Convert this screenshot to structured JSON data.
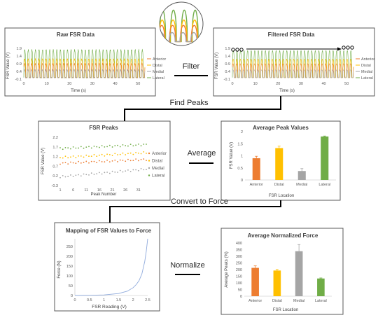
{
  "colors": {
    "anterior": "#ED7D31",
    "distal": "#FFC000",
    "medial": "#A5A5A5",
    "lateral": "#70AD47",
    "curve": "#8FAADC",
    "frame": "#595959",
    "text": "#404040"
  },
  "legend": [
    "Anterior",
    "Distal",
    "Medial",
    "Lateral"
  ],
  "arrows": {
    "filter": "Filter",
    "find_peaks": "Find Peaks",
    "average": "Average",
    "convert": "Convert to Force",
    "normalize": "Normalize"
  },
  "panels": {
    "raw": {
      "title": "Raw FSR Data",
      "ylabel": "FSR Value (V)",
      "xlabel": "Time (s)",
      "yticks": [
        "1.9",
        "1.4",
        "0.9",
        "0.4",
        "-0.1"
      ],
      "xticks": [
        "0",
        "10",
        "20",
        "30",
        "40",
        "50"
      ]
    },
    "filtered": {
      "title": "Filtered FSR Data",
      "ylabel": "FSR Value (V)",
      "xlabel": "Time (s)",
      "yticks": [
        "1.9",
        "1.4",
        "0.9",
        "0.4",
        "-0.1"
      ],
      "xticks": [
        "0",
        "10",
        "20",
        "30",
        "40",
        "50"
      ]
    },
    "peaks": {
      "title": "FSR Peaks",
      "ylabel": "FSR Value (V)",
      "xlabel": "Peak Number",
      "yticks": [
        "2.2",
        "1.7",
        "1.2",
        "0.7",
        "0.2",
        "-0.3"
      ],
      "xticks": [
        "1",
        "6",
        "11",
        "16",
        "21",
        "26",
        "31"
      ]
    },
    "avg_peak": {
      "title": "Average Peak Values",
      "ylabel": "FSR Value (V)",
      "xlabel": "FSR Location",
      "yticks": [
        "2",
        "1.5",
        "1",
        "0.5",
        "0"
      ],
      "categories": [
        "Anterior",
        "Distal",
        "Medial",
        "Lateral"
      ]
    },
    "mapping": {
      "title": "Mapping of FSR Values to Force",
      "ylabel": "Force (N)",
      "xlabel": "FSR Reading (V)",
      "yticks": [
        "250",
        "200",
        "150",
        "100",
        "50",
        "0"
      ],
      "xticks": [
        "0",
        "0.5",
        "1",
        "1.5",
        "2",
        "2.5"
      ]
    },
    "norm": {
      "title": "Average Normalized Force",
      "ylabel": "Average Peaks (%)",
      "xlabel": "FSR Location",
      "yticks": [
        "400",
        "350",
        "300",
        "250",
        "200",
        "150",
        "100",
        "50",
        "0"
      ],
      "categories": [
        "Anterior",
        "Distal",
        "Medial",
        "Lateral"
      ]
    }
  },
  "chart_data": [
    {
      "type": "line",
      "title": "Raw FSR Data",
      "xlabel": "Time (s)",
      "ylabel": "FSR Value (V)",
      "xlim": [
        0,
        53
      ],
      "ylim": [
        -0.1,
        1.9
      ],
      "cycles": 34,
      "series": [
        {
          "name": "Anterior",
          "low": 0.0,
          "high": 0.9
        },
        {
          "name": "Distal",
          "low": 0.0,
          "high": 1.2
        },
        {
          "name": "Medial",
          "low": 0.0,
          "high": 0.5
        },
        {
          "name": "Lateral",
          "low": 0.0,
          "high": 1.8
        }
      ]
    },
    {
      "type": "line",
      "title": "Filtered FSR Data",
      "xlabel": "Time (s)",
      "ylabel": "FSR Value (V)",
      "xlim": [
        0,
        53
      ],
      "ylim": [
        -0.1,
        1.9
      ],
      "cycles": 34,
      "series": [
        {
          "name": "Anterior",
          "low": 0.0,
          "high": 0.9
        },
        {
          "name": "Distal",
          "low": 0.0,
          "high": 1.2
        },
        {
          "name": "Medial",
          "low": 0.0,
          "high": 0.5
        },
        {
          "name": "Lateral",
          "low": 0.0,
          "high": 1.75
        }
      ]
    },
    {
      "type": "scatter",
      "title": "FSR Peaks",
      "xlabel": "Peak Number",
      "ylabel": "FSR Value (V)",
      "xlim": [
        1,
        34
      ],
      "ylim": [
        -0.3,
        2.2
      ],
      "series": [
        {
          "name": "Lateral",
          "start": 1.62,
          "end": 1.82
        },
        {
          "name": "Distal",
          "start": 1.15,
          "end": 1.4
        },
        {
          "name": "Anterior",
          "start": 0.85,
          "end": 1.05
        },
        {
          "name": "Medial",
          "start": 0.15,
          "end": 0.55
        }
      ]
    },
    {
      "type": "bar",
      "title": "Average Peak Values",
      "xlabel": "FSR Location",
      "ylabel": "FSR Value (V)",
      "ylim": [
        0,
        2
      ],
      "categories": [
        "Anterior",
        "Distal",
        "Medial",
        "Lateral"
      ],
      "values": [
        0.9,
        1.32,
        0.37,
        1.8
      ],
      "errors": [
        0.08,
        0.08,
        0.1,
        0.02
      ]
    },
    {
      "type": "line",
      "title": "Mapping of FSR Values to Force",
      "xlabel": "FSR Reading (V)",
      "ylabel": "Force (N)",
      "xlim": [
        0,
        2.5
      ],
      "ylim": [
        0,
        290
      ],
      "points": [
        [
          0,
          0
        ],
        [
          0.5,
          1
        ],
        [
          1.0,
          3
        ],
        [
          1.5,
          10
        ],
        [
          1.8,
          22
        ],
        [
          2.0,
          40
        ],
        [
          2.1,
          55
        ],
        [
          2.2,
          75
        ],
        [
          2.3,
          110
        ],
        [
          2.4,
          175
        ],
        [
          2.45,
          225
        ],
        [
          2.5,
          290
        ]
      ]
    },
    {
      "type": "bar",
      "title": "Average Normalized Force",
      "xlabel": "FSR Location",
      "ylabel": "Average Peaks (%)",
      "ylim": [
        0,
        400
      ],
      "categories": [
        "Anterior",
        "Distal",
        "Medial",
        "Lateral"
      ],
      "values": [
        213,
        193,
        338,
        133
      ],
      "errors": [
        15,
        8,
        50,
        4
      ]
    }
  ]
}
